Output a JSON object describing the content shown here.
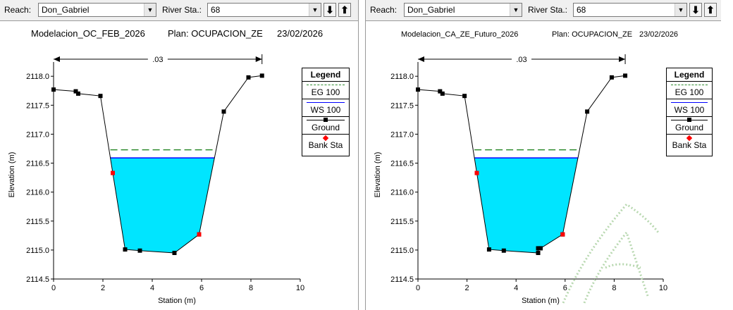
{
  "panels": [
    {
      "reach_label": "Reach:",
      "reach_value": "Don_Gabriel",
      "station_label": "River Sta.:",
      "station_value": "68",
      "title_model": "Modelacion_OC_FEB_2026",
      "title_plan": "Plan: OCUPACION_ZE",
      "title_date": "23/02/2026"
    },
    {
      "reach_label": "Reach:",
      "reach_value": "Don_Gabriel",
      "station_label": "River Sta.:",
      "station_value": "68",
      "title_model": "Modelacion_CA_ZE_Futuro_2026",
      "title_plan": "Plan: OCUPACION_ZE",
      "title_date": "23/02/2026"
    }
  ],
  "buttons": {
    "down_arrow": "⬇",
    "up_arrow": "⬆"
  },
  "colors": {
    "water": "#00e5ff",
    "ws": "#0000ff",
    "eg": "#2e8b2e",
    "ground": "#000000",
    "bank": "#ff0000"
  },
  "chart_data": [
    {
      "type": "line",
      "xlabel": "Station (m)",
      "ylabel": "Elevation (m)",
      "xlim": [
        0,
        10
      ],
      "ylim": [
        2114.5,
        2118.1
      ],
      "xticks": [
        "0",
        "2",
        "4",
        "6",
        "8",
        "10"
      ],
      "yticks": [
        "2114.5",
        "2115.0",
        "2115.5",
        "2116.0",
        "2116.5",
        "2117.0",
        "2117.5",
        "2118.0"
      ],
      "manning_label": ".03",
      "manning_extent": [
        0,
        8.45
      ],
      "ground": [
        [
          0,
          2117.77
        ],
        [
          0.9,
          2117.74
        ],
        [
          1.0,
          2117.7
        ],
        [
          1.9,
          2117.66
        ],
        [
          2.4,
          2116.33
        ],
        [
          2.9,
          2115.01
        ],
        [
          3.5,
          2114.99
        ],
        [
          4.9,
          2114.95
        ],
        [
          5.9,
          2115.27
        ],
        [
          6.9,
          2117.39
        ],
        [
          7.9,
          2117.98
        ],
        [
          8.45,
          2118.01
        ]
      ],
      "bank_stations": [
        [
          2.4,
          2116.33
        ],
        [
          5.9,
          2115.27
        ]
      ],
      "ws_elevation": 2116.59,
      "eg_elevation": 2116.73,
      "legend": {
        "title": "Legend",
        "items": [
          "EG 100",
          "WS 100",
          "Ground",
          "Bank Sta"
        ]
      }
    },
    {
      "type": "line",
      "xlabel": "Station (m)",
      "ylabel": "Elevation (m)",
      "xlim": [
        0,
        10
      ],
      "ylim": [
        2114.5,
        2118.1
      ],
      "xticks": [
        "0",
        "2",
        "4",
        "6",
        "8",
        "10"
      ],
      "yticks": [
        "2114.5",
        "2115.0",
        "2115.5",
        "2116.0",
        "2116.5",
        "2117.0",
        "2117.5",
        "2118.0"
      ],
      "manning_label": ".03",
      "manning_extent": [
        0,
        8.45
      ],
      "ground": [
        [
          0,
          2117.77
        ],
        [
          0.9,
          2117.74
        ],
        [
          1.0,
          2117.7
        ],
        [
          1.9,
          2117.66
        ],
        [
          2.4,
          2116.33
        ],
        [
          2.9,
          2115.01
        ],
        [
          3.5,
          2114.99
        ],
        [
          4.9,
          2114.95
        ],
        [
          4.9,
          2115.03
        ],
        [
          5.0,
          2115.03
        ],
        [
          5.9,
          2115.27
        ],
        [
          6.9,
          2117.39
        ],
        [
          7.9,
          2117.98
        ],
        [
          8.45,
          2118.01
        ]
      ],
      "bank_stations": [
        [
          2.4,
          2116.33
        ],
        [
          5.9,
          2115.27
        ]
      ],
      "ws_elevation": 2116.59,
      "eg_elevation": 2116.73,
      "legend": {
        "title": "Legend",
        "items": [
          "EG 100",
          "WS 100",
          "Ground",
          "Bank Sta"
        ]
      }
    }
  ]
}
